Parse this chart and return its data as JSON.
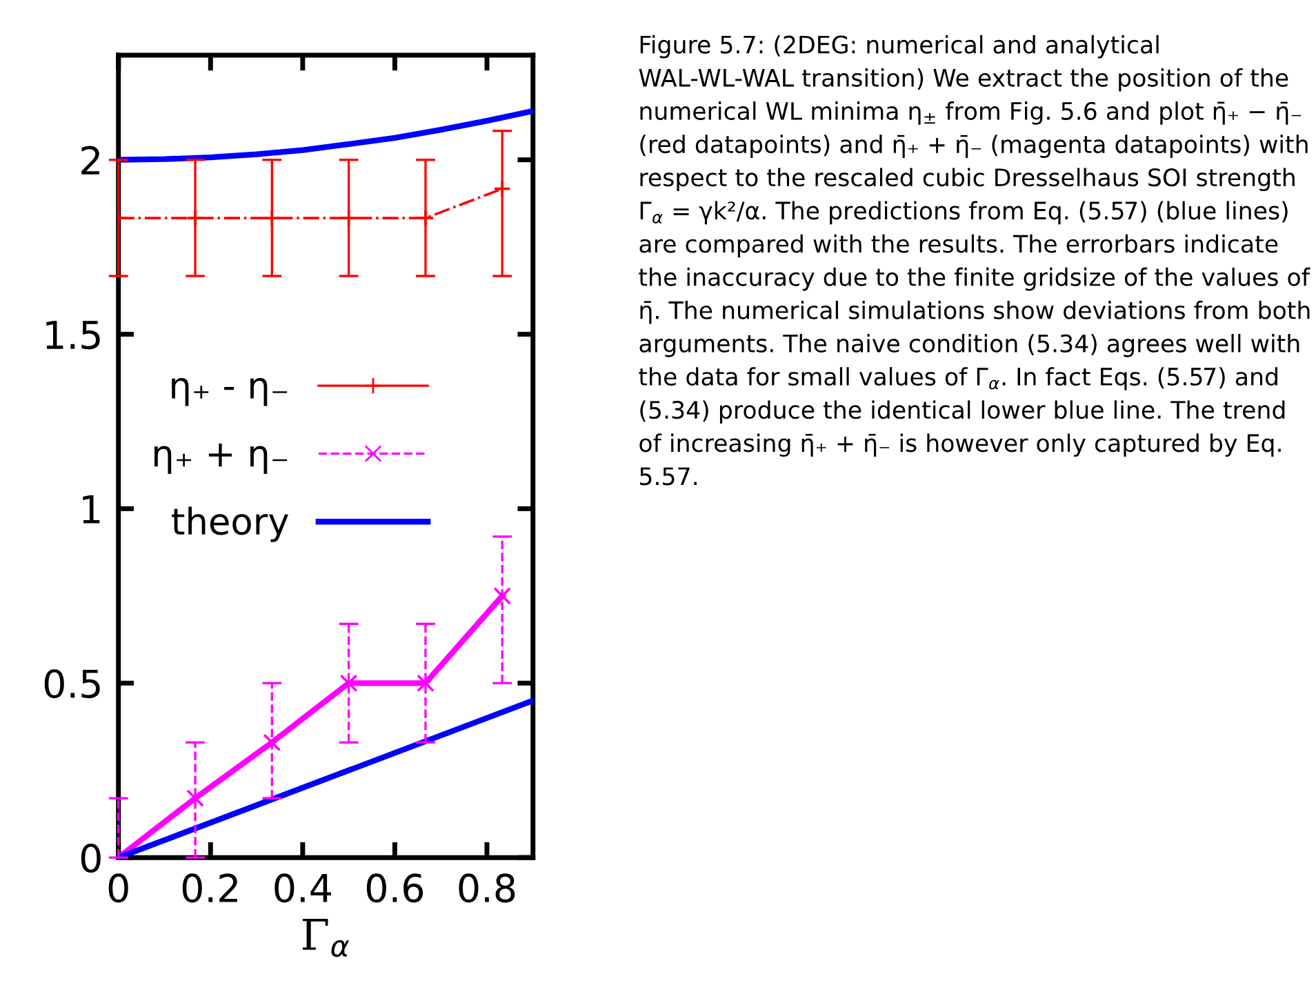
{
  "chart_data": {
    "type": "line",
    "xlabel": "Γ$_{α}$",
    "xlim": [
      0,
      0.9
    ],
    "xticks": [
      0,
      0.2,
      0.4,
      0.6,
      0.8
    ],
    "ylim": [
      0,
      2.3
    ],
    "yticks": [
      0,
      0.5,
      1,
      1.5,
      2
    ],
    "grid": false,
    "legend": "center left",
    "series": [
      {
        "name": "η₊ - η₋",
        "color": "#ff0000",
        "x": [
          0,
          0.1667,
          0.3333,
          0.5,
          0.6667,
          0.8333
        ],
        "values": [
          1.833,
          1.833,
          1.833,
          1.833,
          1.833,
          1.917
        ],
        "errors": [
          [
            1.667,
            2.0
          ],
          [
            1.667,
            2.0
          ],
          [
            1.667,
            2.0
          ],
          [
            1.667,
            2.0
          ],
          [
            1.667,
            2.0
          ],
          [
            1.667,
            2.083
          ]
        ],
        "marker": "plus",
        "line_style": "dashdot"
      },
      {
        "name": "η₊ + η₋",
        "color": "#ff00ff",
        "x": [
          0,
          0.1667,
          0.3333,
          0.5,
          0.6667,
          0.8333
        ],
        "values": [
          0,
          0.17,
          0.33,
          0.5,
          0.5,
          0.75
        ],
        "errors": [
          [
            0,
            0.17
          ],
          [
            0,
            0.33
          ],
          [
            0.17,
            0.5
          ],
          [
            0.33,
            0.67
          ],
          [
            0.33,
            0.67
          ],
          [
            0.5,
            0.92
          ]
        ],
        "marker": "cross",
        "line_style": "solid"
      },
      {
        "name": "theory",
        "color": "#0000ff",
        "x": [
          0,
          0.1,
          0.2,
          0.3,
          0.4,
          0.5,
          0.6,
          0.7,
          0.8,
          0.9
        ],
        "values": [
          2.0,
          2.002,
          2.007,
          2.016,
          2.028,
          2.045,
          2.063,
          2.086,
          2.112,
          2.14
        ],
        "marker": "none",
        "line_style": "solid"
      },
      {
        "color": "#0000ff",
        "x": [
          0,
          0.9
        ],
        "values": [
          0,
          0.45
        ],
        "marker": "none",
        "line_style": "solid"
      }
    ],
    "annotations": [
      "Figure 5.7: (2DEG: numerical and analytical WAL-WL-WAL transition) We extract the position of the numerical WL minima η$_{±}$ from Fig. 5.6 and plot η̄₊ − η̄₋ (red datapoints) and η̄₊ + η̄₋ (magenta datapoints) with respect to the rescaled cubic Dresselhaus SOI strength Γ$_{α}$ = γk²/α. The predictions from Eq. (5.57) (blue lines) are compared with the results. The errorbars indicate the inaccuracy due to the finite gridsize of the values of η̄. The numerical simulations show deviations from both arguments. The naive condition (5.34) agrees well with the data for small values of Γ$_{α}$. In fact Eqs. (5.57) and (5.34) produce the identical lower blue line. The trend of increasing η̄₊ + η̄₋ is however only captured by Eq. 5.57."
    ]
  }
}
